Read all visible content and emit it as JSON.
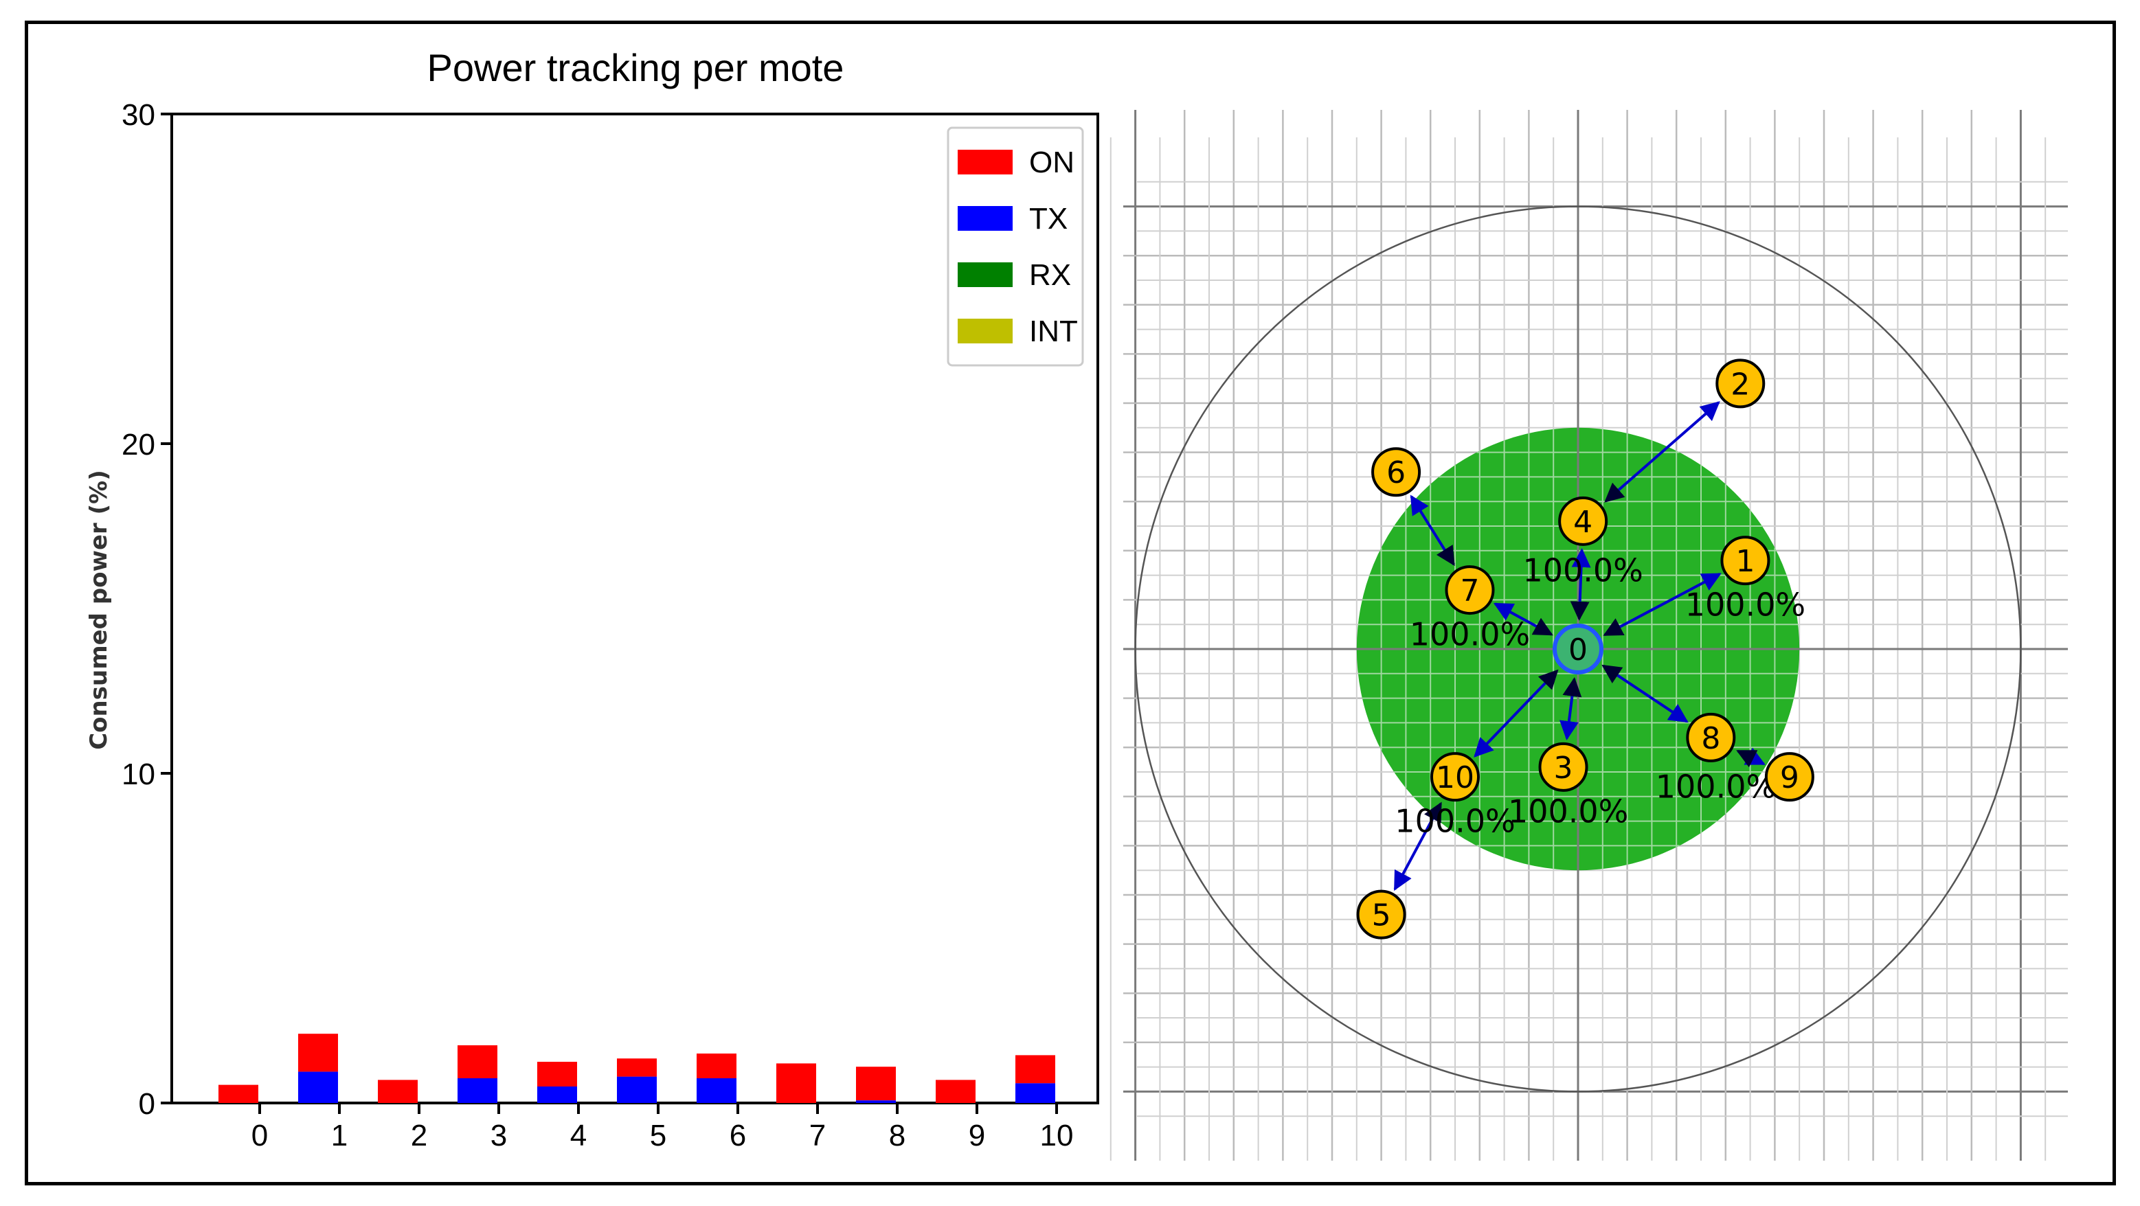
{
  "chart_data": [
    {
      "type": "bar",
      "stacked": true,
      "title": "Power tracking per mote",
      "xlabel": "",
      "ylabel": "Consumed power (%)",
      "ylim": [
        0,
        30
      ],
      "yticks": [
        0,
        10,
        20,
        30
      ],
      "categories": [
        "0",
        "1",
        "2",
        "3",
        "4",
        "5",
        "6",
        "7",
        "8",
        "9",
        "10"
      ],
      "series": [
        {
          "name": "TX",
          "color": "#0000ff",
          "values": [
            0,
            0.95,
            0,
            0.75,
            0.5,
            0.8,
            0.75,
            0,
            0.08,
            0,
            0.6
          ]
        },
        {
          "name": "ON",
          "color": "#ff0000",
          "values": [
            0.55,
            1.15,
            0.7,
            1.0,
            0.75,
            0.55,
            0.75,
            1.2,
            1.02,
            0.7,
            0.85
          ]
        },
        {
          "name": "RX",
          "color": "#008000",
          "values": [
            0,
            0,
            0,
            0,
            0,
            0,
            0,
            0,
            0,
            0,
            0
          ]
        },
        {
          "name": "INT",
          "color": "#bfbf00",
          "values": [
            0,
            0,
            0,
            0,
            0,
            0,
            0,
            0,
            0,
            0,
            0
          ]
        }
      ],
      "legend_order": [
        "ON",
        "TX",
        "RX",
        "INT"
      ],
      "legend_position": "top-right",
      "grid": false
    },
    {
      "type": "network-topology",
      "title": "",
      "grid": true,
      "xlim": [
        -9,
        9
      ],
      "ylim": [
        -9,
        9
      ],
      "grid_step": 1,
      "outer_circle_radius": 9,
      "coverage_radius": 4.5,
      "coverage_color": "#13aa13",
      "node_color": "#ffc000",
      "root_color": "#3cb371",
      "link_color": "#0000cc",
      "nodes": [
        {
          "id": "0",
          "x": 0,
          "y": 0
        },
        {
          "id": "1",
          "x": 3.4,
          "y": 1.8
        },
        {
          "id": "2",
          "x": 3.3,
          "y": 5.4
        },
        {
          "id": "3",
          "x": -0.3,
          "y": -2.4
        },
        {
          "id": "4",
          "x": 0.1,
          "y": 2.6
        },
        {
          "id": "5",
          "x": -4.0,
          "y": -5.4
        },
        {
          "id": "6",
          "x": -3.7,
          "y": 3.6
        },
        {
          "id": "7",
          "x": -2.2,
          "y": 1.2
        },
        {
          "id": "8",
          "x": 2.7,
          "y": -1.8
        },
        {
          "id": "9",
          "x": 4.3,
          "y": -2.6
        },
        {
          "id": "10",
          "x": -2.5,
          "y": -2.6
        }
      ],
      "links": [
        {
          "from": "1",
          "to": "0"
        },
        {
          "from": "2",
          "to": "4"
        },
        {
          "from": "3",
          "to": "0"
        },
        {
          "from": "4",
          "to": "0"
        },
        {
          "from": "5",
          "to": "10"
        },
        {
          "from": "6",
          "to": "7"
        },
        {
          "from": "7",
          "to": "0"
        },
        {
          "from": "8",
          "to": "0"
        },
        {
          "from": "9",
          "to": "8"
        },
        {
          "from": "10",
          "to": "0"
        }
      ],
      "labels": [
        {
          "text": "100.0%",
          "x": 0.1,
          "y": 1.6
        },
        {
          "text": "100.0%",
          "x": 3.4,
          "y": 0.9
        },
        {
          "text": "100.0%",
          "x": -2.2,
          "y": 0.3
        },
        {
          "text": "100.0%",
          "x": 2.8,
          "y": -2.8
        },
        {
          "text": "100.0%",
          "x": -0.2,
          "y": -3.3
        },
        {
          "text": "100.0%",
          "x": -2.5,
          "y": -3.5
        }
      ]
    }
  ]
}
